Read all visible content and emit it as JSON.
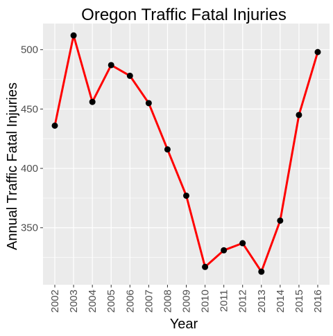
{
  "chart_data": {
    "type": "line",
    "title": "Oregon Traffic Fatal Injuries",
    "xlabel": "Year",
    "ylabel": "Annual Traffic Fatal Injuries",
    "x": [
      "2002",
      "2003",
      "2004",
      "2005",
      "2006",
      "2007",
      "2008",
      "2009",
      "2010",
      "2011",
      "2012",
      "2013",
      "2014",
      "2015",
      "2016"
    ],
    "series": [
      {
        "values": [
          436,
          512,
          456,
          487,
          478,
          455,
          416,
          377,
          317,
          331,
          337,
          313,
          356,
          445,
          498
        ]
      }
    ],
    "yticks": [
      350,
      400,
      450,
      500
    ],
    "ylim": [
      302,
      522
    ],
    "grid": true,
    "line_color": "#ff0000",
    "point_color": "#000000",
    "panel_bg": "#ebebeb",
    "grid_color": "#ffffff"
  }
}
